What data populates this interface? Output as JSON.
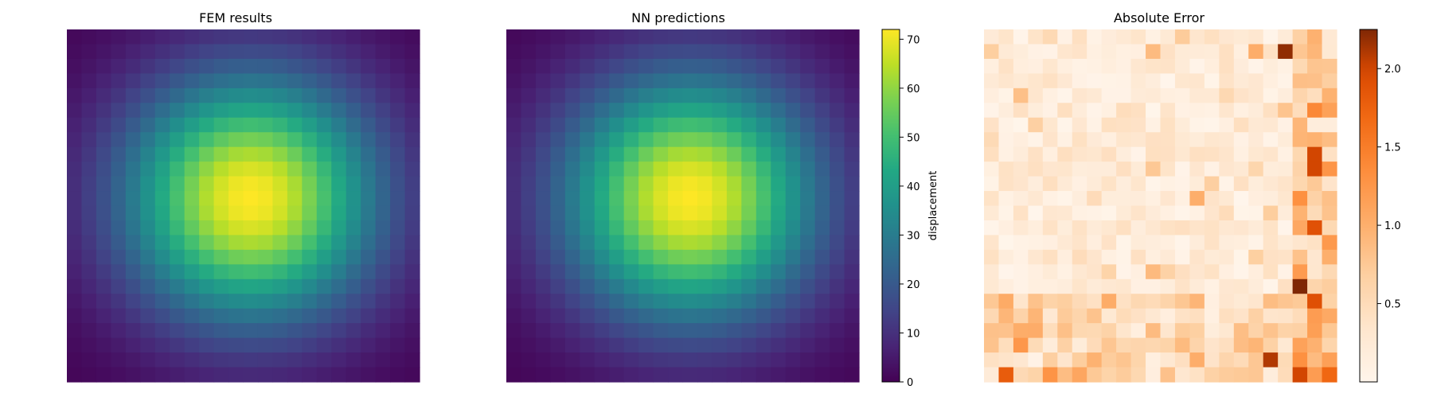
{
  "chart_data": [
    {
      "type": "heatmap",
      "title": "FEM results",
      "grid": [
        24,
        24
      ],
      "colormap": "viridis",
      "value_range": [
        0,
        71
      ],
      "axes_visible": false,
      "field": {
        "model": "product of two bell curves",
        "peak_value": 71,
        "peak_cell": [
          11,
          12
        ],
        "x_sigma_cells": 6.0,
        "y_sigma_cells": 5.8,
        "floor_value": 0
      }
    },
    {
      "type": "heatmap",
      "title": "NN predictions",
      "grid": [
        24,
        24
      ],
      "colormap": "viridis",
      "value_range": [
        0,
        71
      ],
      "axes_visible": false,
      "field": {
        "model": "product of two bell curves",
        "peak_value": 71,
        "peak_cell": [
          11,
          12
        ],
        "x_sigma_cells": 6.0,
        "y_sigma_cells": 5.8,
        "floor_value": 0
      },
      "colorbar": {
        "label": "displacement",
        "range": [
          0,
          72
        ],
        "ticks": [
          0,
          10,
          20,
          30,
          40,
          50,
          60,
          70
        ]
      }
    },
    {
      "type": "heatmap",
      "title": "Absolute Error",
      "grid": [
        24,
        24
      ],
      "colormap": "oranges",
      "value_range": [
        0,
        2.25
      ],
      "axes_visible": false,
      "note_values": "small errors everywhere; larger values along the right columns and bottom rows",
      "hotspots": [
        {
          "row": 1,
          "col": 20,
          "value": 2.2
        },
        {
          "row": 8,
          "col": 22,
          "value": 2.0
        },
        {
          "row": 9,
          "col": 22,
          "value": 2.0
        },
        {
          "row": 13,
          "col": 22,
          "value": 1.9
        },
        {
          "row": 17,
          "col": 21,
          "value": 2.25
        },
        {
          "row": 22,
          "col": 19,
          "value": 2.1
        },
        {
          "row": 23,
          "col": 1,
          "value": 1.8
        },
        {
          "row": 23,
          "col": 21,
          "value": 2.0
        }
      ],
      "colorbar": {
        "label": "",
        "range": [
          0,
          2.25
        ],
        "ticks": [
          0.5,
          1.0,
          1.5,
          2.0
        ],
        "tick_labels": [
          "0.5",
          "1.0",
          "1.5",
          "2.0"
        ]
      }
    }
  ]
}
